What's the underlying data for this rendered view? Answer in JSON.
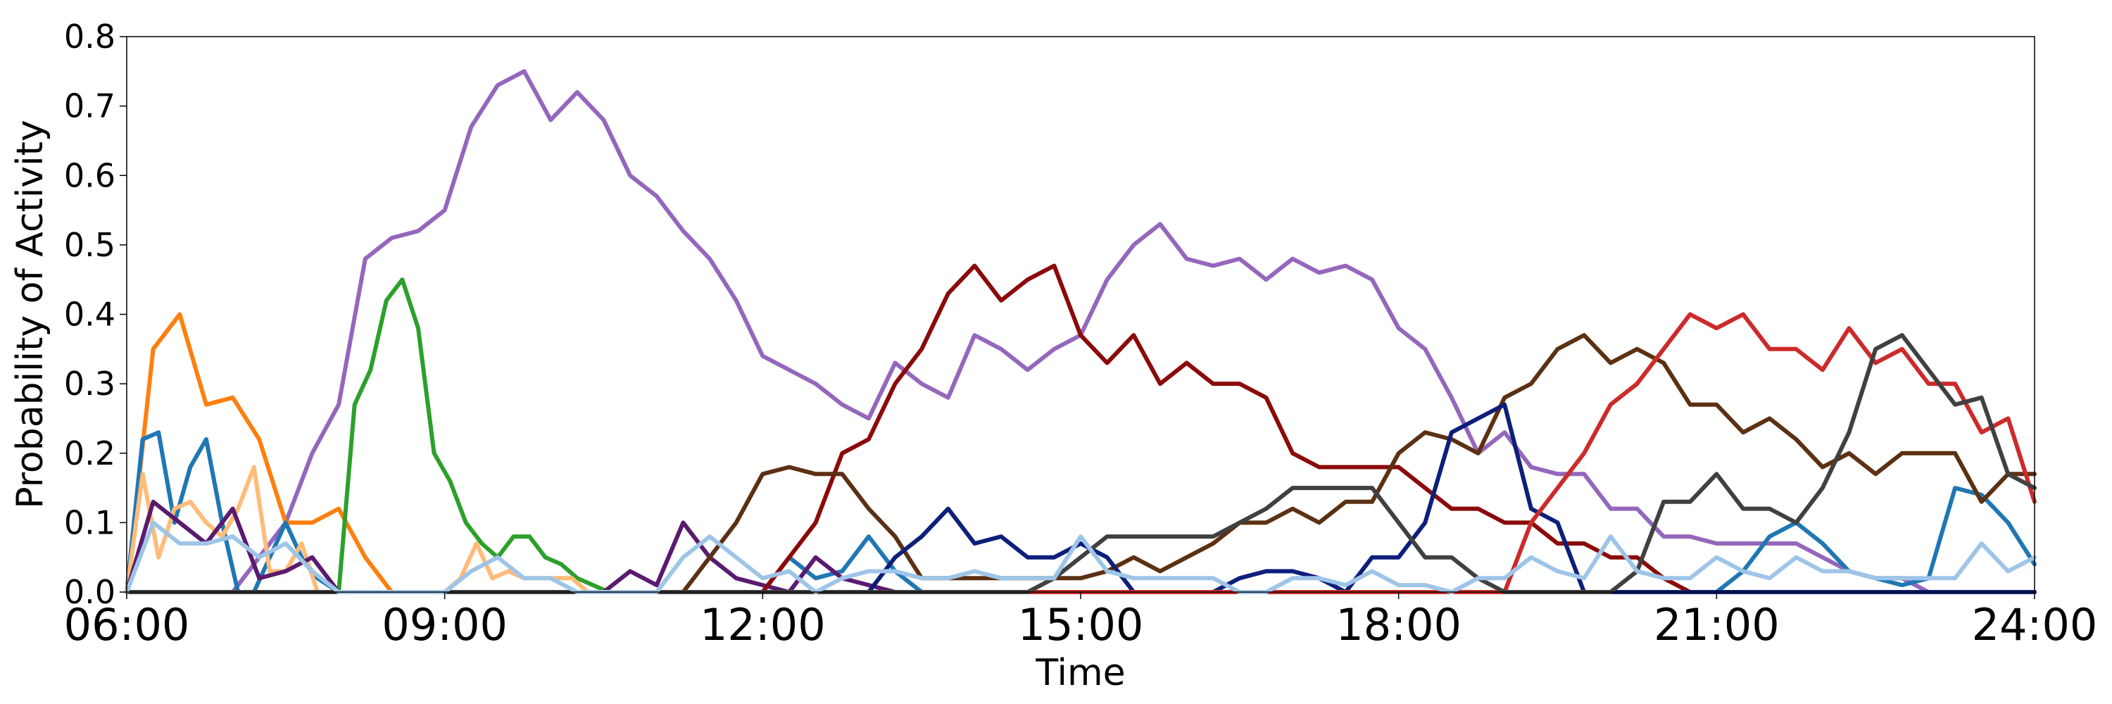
{
  "chart_data": {
    "type": "line",
    "xlabel": "Time",
    "ylabel": "Probability of Activity",
    "xlim": [
      6,
      24
    ],
    "ylim": [
      0,
      0.8
    ],
    "xticks": [
      6,
      9,
      12,
      15,
      18,
      21,
      24
    ],
    "xtick_labels": [
      "06:00",
      "09:00",
      "12:00",
      "15:00",
      "18:00",
      "21:00",
      "24:00"
    ],
    "yticks": [
      0.0,
      0.1,
      0.2,
      0.3,
      0.4,
      0.5,
      0.6,
      0.7,
      0.8
    ],
    "ytick_labels": [
      "0.0",
      "0.1",
      "0.2",
      "0.3",
      "0.4",
      "0.5",
      "0.6",
      "0.7",
      "0.8"
    ],
    "grid": false,
    "series": [
      {
        "color": "#9467bd",
        "x": [
          6,
          7,
          7.25,
          7.5,
          7.75,
          8,
          8.25,
          8.5,
          8.75,
          9,
          9.25,
          9.5,
          9.75,
          10,
          10.25,
          10.5,
          10.75,
          11,
          11.25,
          11.5,
          11.75,
          12,
          12.25,
          12.5,
          12.75,
          13,
          13.25,
          13.5,
          13.75,
          14,
          14.25,
          14.5,
          14.75,
          15,
          15.25,
          15.5,
          15.75,
          16,
          16.25,
          16.5,
          16.75,
          17,
          17.25,
          17.5,
          17.75,
          18,
          18.25,
          18.5,
          18.75,
          19,
          19.25,
          19.5,
          19.75,
          20,
          20.25,
          20.5,
          20.75,
          21,
          21.25,
          21.5,
          21.75,
          22,
          22.25,
          22.5,
          22.75,
          23,
          23.25,
          23.5,
          23.75,
          24
        ],
        "y": [
          0,
          0,
          0.05,
          0.1,
          0.2,
          0.27,
          0.48,
          0.51,
          0.52,
          0.55,
          0.67,
          0.73,
          0.75,
          0.68,
          0.72,
          0.68,
          0.6,
          0.57,
          0.52,
          0.48,
          0.42,
          0.34,
          0.32,
          0.3,
          0.27,
          0.25,
          0.33,
          0.3,
          0.28,
          0.37,
          0.35,
          0.32,
          0.35,
          0.37,
          0.45,
          0.5,
          0.53,
          0.48,
          0.47,
          0.48,
          0.45,
          0.48,
          0.46,
          0.47,
          0.45,
          0.38,
          0.35,
          0.28,
          0.2,
          0.23,
          0.18,
          0.17,
          0.17,
          0.12,
          0.12,
          0.08,
          0.08,
          0.07,
          0.07,
          0.07,
          0.07,
          0.05,
          0.03,
          0.02,
          0.02,
          0,
          0,
          0,
          0,
          0
        ]
      },
      {
        "color": "#ff7f0e",
        "x": [
          6,
          6.25,
          6.5,
          6.75,
          7,
          7.25,
          7.5,
          7.75,
          8,
          8.25,
          8.5,
          24
        ],
        "y": [
          0,
          0.35,
          0.4,
          0.27,
          0.28,
          0.22,
          0.1,
          0.1,
          0.12,
          0.05,
          0,
          0
        ]
      },
      {
        "color": "#1f77b4",
        "x": [
          6,
          6.15,
          6.3,
          6.45,
          6.6,
          6.75,
          6.9,
          7.05,
          7.2,
          7.35,
          7.5,
          7.65,
          7.8,
          8,
          12,
          12.25,
          12.5,
          12.75,
          13,
          13.25,
          13.5,
          21,
          21.25,
          21.5,
          21.75,
          22,
          22.25,
          22.5,
          22.75,
          23,
          23.25,
          23.5,
          23.75,
          24
        ],
        "y": [
          0,
          0.22,
          0.23,
          0.1,
          0.18,
          0.22,
          0.1,
          0,
          0,
          0.05,
          0.1,
          0.05,
          0.02,
          0,
          0,
          0.05,
          0.02,
          0.03,
          0.08,
          0.03,
          0,
          0,
          0.03,
          0.08,
          0.1,
          0.07,
          0.03,
          0.02,
          0.01,
          0.02,
          0.15,
          0.14,
          0.1,
          0.04
        ]
      },
      {
        "color": "#2ca02c",
        "x": [
          6,
          8,
          8.15,
          8.3,
          8.45,
          8.6,
          8.75,
          8.9,
          9.05,
          9.2,
          9.35,
          9.5,
          9.65,
          9.8,
          9.95,
          10.1,
          10.25,
          10.4,
          10.55,
          10.7,
          24
        ],
        "y": [
          0,
          0,
          0.27,
          0.32,
          0.42,
          0.45,
          0.38,
          0.2,
          0.16,
          0.1,
          0.07,
          0.05,
          0.08,
          0.08,
          0.05,
          0.04,
          0.02,
          0.01,
          0,
          0,
          0
        ]
      },
      {
        "color": "#ffbb78",
        "x": [
          6,
          6.15,
          6.3,
          6.45,
          6.6,
          6.75,
          6.9,
          7.05,
          7.2,
          7.35,
          7.5,
          7.65,
          7.8,
          8,
          9,
          9.15,
          9.3,
          9.45,
          9.6,
          9.75,
          9.9,
          10.05,
          10.2,
          10.35,
          10.5,
          24
        ],
        "y": [
          0,
          0.17,
          0.05,
          0.12,
          0.13,
          0.1,
          0.08,
          0.12,
          0.18,
          0.03,
          0.03,
          0.07,
          0,
          0,
          0,
          0.02,
          0.07,
          0.02,
          0.03,
          0.02,
          0.02,
          0.02,
          0.02,
          0,
          0,
          0
        ]
      },
      {
        "color": "#5a1a6e",
        "x": [
          6,
          6.25,
          6.5,
          6.75,
          7,
          7.25,
          7.5,
          7.75,
          8,
          10.5,
          10.75,
          11,
          11.25,
          11.5,
          11.75,
          12,
          12.25,
          12.5,
          12.75,
          13,
          13.25,
          24
        ],
        "y": [
          0,
          0.13,
          0.1,
          0.07,
          0.12,
          0.02,
          0.03,
          0.05,
          0,
          0,
          0.03,
          0.01,
          0.1,
          0.05,
          0.02,
          0.01,
          0,
          0.05,
          0.02,
          0.01,
          0,
          0
        ]
      },
      {
        "color": "#8b0a0a",
        "x": [
          6,
          12,
          12.25,
          12.5,
          12.75,
          13,
          13.25,
          13.5,
          13.75,
          14,
          14.25,
          14.5,
          14.75,
          15,
          15.25,
          15.5,
          15.75,
          16,
          16.25,
          16.5,
          16.75,
          17,
          17.25,
          17.5,
          17.75,
          18,
          18.25,
          18.5,
          18.75,
          19,
          19.25,
          19.5,
          19.75,
          20,
          20.25,
          20.5,
          20.75,
          24
        ],
        "y": [
          0,
          0,
          0.05,
          0.1,
          0.2,
          0.22,
          0.3,
          0.35,
          0.43,
          0.47,
          0.42,
          0.45,
          0.47,
          0.37,
          0.33,
          0.37,
          0.3,
          0.33,
          0.3,
          0.3,
          0.28,
          0.2,
          0.18,
          0.18,
          0.18,
          0.18,
          0.15,
          0.12,
          0.12,
          0.1,
          0.1,
          0.07,
          0.07,
          0.05,
          0.05,
          0.02,
          0,
          0
        ]
      },
      {
        "color": "#5c3012",
        "x": [
          6,
          11.25,
          11.5,
          11.75,
          12,
          12.25,
          12.5,
          12.75,
          13,
          13.25,
          13.5,
          14,
          15,
          15.25,
          15.5,
          15.75,
          16,
          16.25,
          16.5,
          16.75,
          17,
          17.25,
          17.5,
          17.75,
          18,
          18.25,
          18.5,
          18.75,
          19,
          19.25,
          19.5,
          19.75,
          20,
          20.25,
          20.5,
          20.75,
          21,
          21.25,
          21.5,
          21.75,
          22,
          22.25,
          22.5,
          22.75,
          23,
          23.25,
          23.5,
          23.75,
          24
        ],
        "y": [
          0,
          0,
          0.05,
          0.1,
          0.17,
          0.18,
          0.17,
          0.17,
          0.12,
          0.08,
          0.02,
          0.02,
          0.02,
          0.03,
          0.05,
          0.03,
          0.05,
          0.07,
          0.1,
          0.1,
          0.12,
          0.1,
          0.13,
          0.13,
          0.2,
          0.23,
          0.22,
          0.2,
          0.28,
          0.3,
          0.35,
          0.37,
          0.33,
          0.35,
          0.33,
          0.27,
          0.27,
          0.23,
          0.25,
          0.22,
          0.18,
          0.2,
          0.17,
          0.2,
          0.2,
          0.2,
          0.13,
          0.17,
          0.17
        ]
      },
      {
        "color": "#0d1f7a",
        "x": [
          6,
          13,
          13.25,
          13.5,
          13.75,
          14,
          14.25,
          14.5,
          14.75,
          15,
          15.25,
          15.5,
          16.25,
          16.5,
          16.75,
          17,
          17.25,
          17.5,
          17.75,
          18,
          18.25,
          18.5,
          18.75,
          19,
          19.25,
          19.5,
          19.75,
          24
        ],
        "y": [
          0,
          0,
          0.05,
          0.08,
          0.12,
          0.07,
          0.08,
          0.05,
          0.05,
          0.07,
          0.05,
          0,
          0,
          0.02,
          0.03,
          0.03,
          0.02,
          0,
          0.05,
          0.05,
          0.1,
          0.23,
          0.25,
          0.27,
          0.12,
          0.1,
          0,
          0
        ]
      },
      {
        "color": "#cd2a2a",
        "x": [
          6,
          19,
          19.25,
          19.5,
          19.75,
          20,
          20.25,
          20.5,
          20.75,
          21,
          21.25,
          21.5,
          21.75,
          22,
          22.25,
          22.5,
          22.75,
          23,
          23.25,
          23.5,
          23.75,
          24
        ],
        "y": [
          0,
          0,
          0.1,
          0.15,
          0.2,
          0.27,
          0.3,
          0.35,
          0.4,
          0.38,
          0.4,
          0.35,
          0.35,
          0.32,
          0.38,
          0.33,
          0.35,
          0.3,
          0.3,
          0.23,
          0.25,
          0.13
        ]
      },
      {
        "color": "#404040",
        "x": [
          6,
          14.5,
          14.75,
          15,
          15.25,
          15.5,
          15.75,
          16,
          16.25,
          16.5,
          16.75,
          17,
          17.25,
          17.5,
          17.75,
          18,
          18.25,
          18.5,
          18.75,
          19,
          20,
          20.25,
          20.5,
          20.75,
          21,
          21.25,
          21.5,
          21.75,
          22,
          22.25,
          22.5,
          22.75,
          23,
          23.25,
          23.5,
          23.75,
          24
        ],
        "y": [
          0,
          0,
          0.02,
          0.05,
          0.08,
          0.08,
          0.08,
          0.08,
          0.08,
          0.1,
          0.12,
          0.15,
          0.15,
          0.15,
          0.15,
          0.1,
          0.05,
          0.05,
          0.02,
          0,
          0,
          0.03,
          0.13,
          0.13,
          0.17,
          0.12,
          0.12,
          0.1,
          0.15,
          0.23,
          0.35,
          0.37,
          0.32,
          0.27,
          0.28,
          0.17,
          0.15
        ]
      },
      {
        "color": "#9ec5e8",
        "x": [
          6,
          6.25,
          6.5,
          6.75,
          7,
          7.25,
          7.5,
          7.75,
          8,
          9,
          9.25,
          9.5,
          9.75,
          10,
          10.25,
          11,
          11.25,
          11.5,
          11.75,
          12,
          12.25,
          12.5,
          12.75,
          13,
          13.25,
          13.5,
          13.75,
          14,
          14.25,
          14.5,
          14.75,
          15,
          15.25,
          15.5,
          15.75,
          16,
          16.25,
          16.5,
          16.75,
          17,
          17.25,
          17.5,
          17.75,
          18,
          18.25,
          18.5,
          18.75,
          19,
          19.25,
          19.5,
          19.75,
          20,
          20.25,
          20.5,
          20.75,
          21,
          21.25,
          21.5,
          21.75,
          22,
          22.25,
          22.5,
          22.75,
          23,
          23.25,
          23.5,
          23.75,
          24
        ],
        "y": [
          0,
          0.1,
          0.07,
          0.07,
          0.08,
          0.05,
          0.07,
          0.03,
          0,
          0,
          0.03,
          0.05,
          0.02,
          0.02,
          0,
          0,
          0.05,
          0.08,
          0.05,
          0.02,
          0.03,
          0,
          0.02,
          0.03,
          0.03,
          0.02,
          0.02,
          0.03,
          0.02,
          0.02,
          0.02,
          0.08,
          0.03,
          0.02,
          0.02,
          0.02,
          0.02,
          0,
          0,
          0.02,
          0.02,
          0.01,
          0.03,
          0.01,
          0.01,
          0,
          0.02,
          0.02,
          0.05,
          0.03,
          0.02,
          0.08,
          0.03,
          0.02,
          0.02,
          0.05,
          0.03,
          0.02,
          0.05,
          0.03,
          0.03,
          0.02,
          0.02,
          0.02,
          0.02,
          0.07,
          0.03,
          0.05
        ]
      }
    ]
  }
}
